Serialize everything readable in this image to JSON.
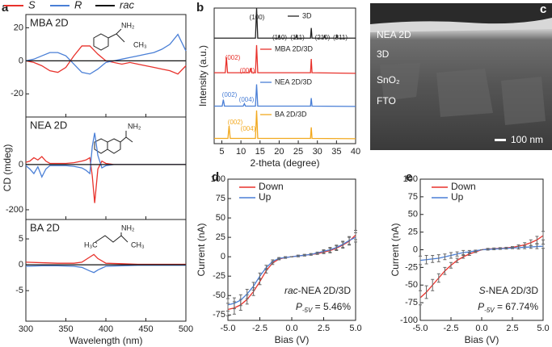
{
  "chart_data": [
    {
      "type": "line",
      "panel": "a",
      "title": "MBA 2D",
      "legend": "top",
      "xlim": [
        300,
        500
      ],
      "xticks": [
        300,
        350,
        400,
        450,
        500
      ],
      "ylim": [
        -34,
        28
      ],
      "yticks": [
        -20,
        0,
        20
      ],
      "x": [
        300,
        310,
        320,
        330,
        340,
        350,
        360,
        370,
        380,
        390,
        400,
        410,
        420,
        430,
        440,
        450,
        460,
        470,
        480,
        490,
        500
      ],
      "structure_labels": [
        "NH₂",
        "CH₃"
      ],
      "series": [
        {
          "name": "S",
          "color": "#e8322c",
          "values": [
            0,
            -1,
            -3,
            -6,
            -7,
            -4,
            3,
            9,
            9,
            4,
            0,
            -1,
            -2,
            -1,
            -2,
            -3,
            -4,
            -5,
            -6,
            -8,
            -3
          ]
        },
        {
          "name": "R",
          "color": "#4a7fd6",
          "values": [
            0,
            1,
            3,
            5,
            5,
            3,
            -2,
            -7,
            -8,
            -5,
            -1,
            0,
            1,
            2,
            3,
            4,
            5,
            7,
            10,
            16,
            6
          ]
        },
        {
          "name": "rac",
          "color": "#111111",
          "values": [
            0,
            0,
            0,
            0,
            0,
            0,
            0,
            0,
            0,
            0,
            0,
            0,
            0,
            0,
            0,
            0,
            0,
            0,
            0,
            0,
            0
          ]
        }
      ]
    },
    {
      "type": "line",
      "title": "NEA 2D",
      "ylabel": "CD (mdeg)",
      "xlim": [
        300,
        500
      ],
      "xticks": [
        300,
        350,
        400,
        450,
        500
      ],
      "ylim": [
        -243,
        210
      ],
      "yticks": [
        -200,
        0
      ],
      "x": [
        300,
        305,
        310,
        315,
        320,
        325,
        330,
        340,
        350,
        360,
        370,
        375,
        380,
        383,
        386,
        390,
        395,
        400,
        410,
        420,
        440,
        460,
        480,
        500
      ],
      "structure_labels": [
        "NH₂"
      ],
      "series": [
        {
          "color": "#e8322c",
          "values": [
            10,
            15,
            30,
            20,
            35,
            15,
            5,
            5,
            5,
            8,
            15,
            20,
            30,
            -50,
            -170,
            -20,
            15,
            5,
            0,
            0,
            0,
            0,
            0,
            0
          ]
        },
        {
          "color": "#4a7fd6",
          "values": [
            -5,
            -20,
            -40,
            -10,
            -55,
            -20,
            -5,
            -5,
            -5,
            -8,
            -15,
            -25,
            -40,
            80,
            140,
            40,
            -15,
            -5,
            0,
            0,
            0,
            0,
            0,
            0
          ]
        },
        {
          "color": "#111111",
          "values": [
            0,
            0,
            0,
            0,
            0,
            0,
            0,
            0,
            0,
            0,
            0,
            0,
            0,
            0,
            0,
            0,
            0,
            0,
            0,
            0,
            0,
            0,
            0,
            0
          ]
        }
      ]
    },
    {
      "type": "line",
      "title": "BA 2D",
      "xlabel": "Wavelength (nm)",
      "xlim": [
        300,
        500
      ],
      "xticks": [
        300,
        350,
        400,
        450,
        500
      ],
      "ylim": [
        -10.9,
        8.75
      ],
      "yticks": [
        -5,
        0,
        5
      ],
      "x": [
        300,
        320,
        340,
        360,
        370,
        380,
        385,
        390,
        400,
        420,
        440,
        460,
        480,
        500
      ],
      "structure_labels": [
        "NH₂",
        "H₃C",
        "CH₃"
      ],
      "series": [
        {
          "color": "#e8322c",
          "values": [
            0.5,
            0.4,
            0.3,
            0.3,
            0.5,
            1.5,
            2,
            1.2,
            0.3,
            0.2,
            0.1,
            0.1,
            0.1,
            0.1
          ]
        },
        {
          "color": "#4a7fd6",
          "values": [
            -0.3,
            -0.2,
            -0.2,
            -0.3,
            -0.5,
            -1.2,
            -1.5,
            -1,
            -0.3,
            -0.2,
            -0.1,
            -0.1,
            -0.1,
            -0.1
          ]
        },
        {
          "color": "#111111",
          "values": [
            0,
            0,
            0,
            0,
            0,
            0,
            0,
            0,
            0,
            0,
            0,
            0,
            0,
            0
          ]
        }
      ]
    },
    {
      "type": "line",
      "stacked": true,
      "panel": "b",
      "xlabel": "2-theta (degree)",
      "ylabel": "Intensity (a.u.)",
      "xlim": [
        3,
        40
      ],
      "xticks": [
        5,
        10,
        15,
        20,
        25,
        30,
        35,
        40
      ],
      "series": [
        {
          "name": "3D",
          "color": "#222222",
          "peak_labels": [
            "(100)",
            "(110)",
            "(111)",
            "(210)",
            "(211)"
          ],
          "x": [
            3,
            13.8,
            14.1,
            14.4,
            19.8,
            20,
            20.2,
            24.3,
            24.5,
            24.7,
            28.2,
            28.4,
            28.6,
            31.7,
            31.9,
            32.1,
            34.9,
            35.1,
            35.3,
            40
          ],
          "values": [
            0.02,
            0.02,
            1,
            0.02,
            0.02,
            0.12,
            0.02,
            0.02,
            0.1,
            0.02,
            0.02,
            0.35,
            0.02,
            0.02,
            0.12,
            0.02,
            0.02,
            0.1,
            0.02,
            0.02
          ]
        },
        {
          "name": "MBA 2D/3D",
          "color": "#e8322c",
          "peak_labels": [
            "(002)",
            "(004)"
          ],
          "x": [
            3,
            5.9,
            6.2,
            6.5,
            12.2,
            12.5,
            12.8,
            13.8,
            14.1,
            14.4,
            28.2,
            28.4,
            28.6,
            40
          ],
          "values": [
            0.05,
            0.05,
            0.55,
            0.05,
            0.05,
            0.2,
            0.05,
            0.05,
            0.95,
            0.05,
            0.05,
            0.5,
            0.05,
            0.03
          ]
        },
        {
          "name": "NEA 2D/3D",
          "color": "#4a7fd6",
          "peak_labels": [
            "(002)",
            "(004)"
          ],
          "x": [
            3,
            5.1,
            5.4,
            5.7,
            10.6,
            10.9,
            11.2,
            13.8,
            14.1,
            14.4,
            28.2,
            28.4,
            28.6,
            40
          ],
          "values": [
            0.04,
            0.04,
            0.25,
            0.04,
            0.04,
            0.12,
            0.04,
            0.04,
            0.75,
            0.04,
            0.04,
            0.3,
            0.04,
            0.03
          ]
        },
        {
          "name": "BA 2D/3D",
          "color": "#f2a91f",
          "peak_labels": [
            "(002)",
            "(004)"
          ],
          "x": [
            3,
            6.6,
            6.9,
            7.2,
            13.8,
            14.1,
            14.4,
            28.2,
            28.4,
            28.6,
            40
          ],
          "values": [
            0.04,
            0.04,
            0.45,
            0.04,
            0.04,
            0.95,
            0.04,
            0.04,
            0.4,
            0.04,
            0.03
          ]
        }
      ]
    },
    {
      "type": "line",
      "panel": "d",
      "xlabel": "Bias (V)",
      "ylabel": "Current (nA)",
      "legend": "upper left",
      "xlim": [
        -5,
        5
      ],
      "xticks": [
        {
          "value": -5,
          "label": "-5.0"
        },
        {
          "value": -2.5,
          "label": "-2.5"
        },
        {
          "value": 0,
          "label": "0.0"
        },
        {
          "value": 2.5,
          "label": "2.5"
        },
        {
          "value": 5,
          "label": "5.0"
        }
      ],
      "ylim": [
        -82,
        100
      ],
      "yticks": [
        -75,
        -50,
        -25,
        0,
        25,
        50,
        75,
        100
      ],
      "annotation": {
        "label_italic": "rac",
        "label": "-NEA 2D/3D",
        "p": "P",
        "p_sub": "-5V",
        "p_text": " = 5.46%"
      },
      "x": [
        -5,
        -4.5,
        -4,
        -3.5,
        -3,
        -2.5,
        -2,
        -1.5,
        -1,
        -0.5,
        0,
        0.5,
        1,
        1.5,
        2,
        2.5,
        3,
        3.5,
        4,
        4.5,
        5
      ],
      "series": [
        {
          "name": "Down",
          "color": "#e8322c",
          "values": [
            -68,
            -66,
            -62,
            -55,
            -45,
            -32,
            -18,
            -8,
            -3,
            -1,
            0,
            1,
            2,
            3,
            4,
            6,
            8,
            11,
            15,
            20,
            28
          ],
          "errors": [
            8,
            8,
            7,
            6,
            5,
            4,
            3,
            2,
            1,
            1,
            0,
            1,
            1,
            1,
            1,
            2,
            3,
            3,
            4,
            5,
            6
          ]
        },
        {
          "name": "Up",
          "color": "#4a7fd6",
          "values": [
            -62,
            -60,
            -56,
            -48,
            -38,
            -25,
            -14,
            -6,
            -2,
            -1,
            0,
            1,
            2,
            3,
            5,
            7,
            9,
            12,
            16,
            21,
            25
          ],
          "errors": [
            8,
            7,
            7,
            6,
            5,
            4,
            3,
            2,
            1,
            1,
            0,
            1,
            1,
            1,
            1,
            2,
            3,
            3,
            4,
            5,
            6
          ]
        }
      ]
    },
    {
      "type": "line",
      "panel": "e",
      "xlabel": "Bias (V)",
      "ylabel": "Current (nA)",
      "legend": "upper left",
      "xlim": [
        -5,
        5
      ],
      "xticks": [
        {
          "value": -5,
          "label": "-5.0"
        },
        {
          "value": -2.5,
          "label": "-2.5"
        },
        {
          "value": 0,
          "label": "0.0"
        },
        {
          "value": 2.5,
          "label": "2.5"
        },
        {
          "value": 5,
          "label": "5.0"
        }
      ],
      "ylim": [
        -100,
        100
      ],
      "yticks": [
        -100,
        -75,
        -50,
        -25,
        0,
        25,
        50,
        75,
        100
      ],
      "annotation": {
        "label_italic": "S",
        "label": "-NEA 2D/3D",
        "p": "P",
        "p_sub": "-5V",
        "p_text": " = 67.74%"
      },
      "x": [
        -5,
        -4.5,
        -4,
        -3.5,
        -3,
        -2.5,
        -2,
        -1.5,
        -1,
        -0.5,
        0,
        0.5,
        1,
        1.5,
        2,
        2.5,
        3,
        3.5,
        4,
        4.5,
        5
      ],
      "series": [
        {
          "name": "Down",
          "color": "#e8322c",
          "values": [
            -68,
            -60,
            -50,
            -40,
            -30,
            -22,
            -15,
            -10,
            -6,
            -3,
            0,
            1,
            1.5,
            2,
            2.5,
            3.5,
            5,
            7,
            10,
            14,
            20
          ],
          "errors": [
            10,
            9,
            8,
            6,
            5,
            4,
            3,
            2,
            2,
            1,
            0,
            1,
            1,
            1,
            1,
            1,
            2,
            3,
            4,
            5,
            6
          ]
        },
        {
          "name": "Up",
          "color": "#4a7fd6",
          "values": [
            -15,
            -14,
            -13,
            -12,
            -10,
            -8,
            -6,
            -4,
            -3,
            -1.5,
            0,
            0.5,
            1,
            1.5,
            2,
            2.5,
            3,
            3.5,
            4,
            4.5,
            5
          ],
          "errors": [
            6,
            6,
            5,
            5,
            4,
            4,
            3,
            3,
            2,
            1,
            0,
            1,
            1,
            1,
            1,
            1,
            2,
            2,
            2,
            3,
            3
          ]
        }
      ]
    }
  ],
  "image_panel": {
    "panel": "c",
    "labels": [
      "NEA 2D",
      "3D",
      "SnO₂",
      "FTO"
    ],
    "scale_bar": "100 nm"
  }
}
